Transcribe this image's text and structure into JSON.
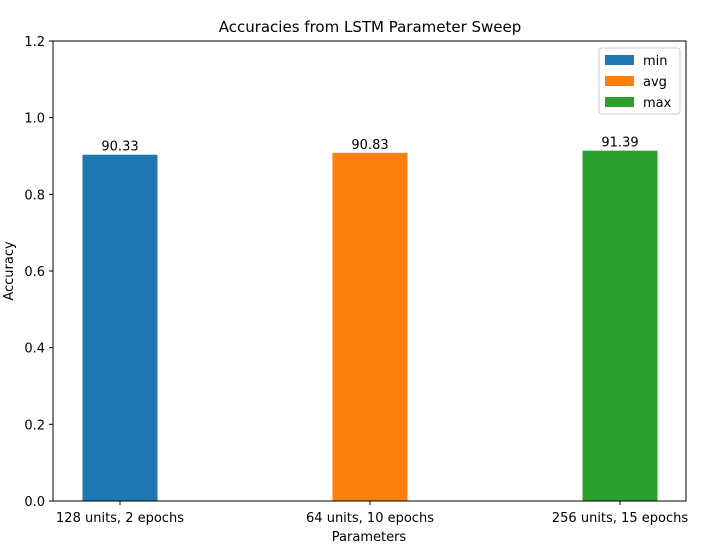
{
  "chart_data": {
    "type": "bar",
    "title": "Accuracies from LSTM Parameter Sweep",
    "xlabel": "Parameters",
    "ylabel": "Accuracy",
    "ylim": [
      0,
      1.2
    ],
    "yticks": [
      "0.0",
      "0.2",
      "0.4",
      "0.6",
      "0.8",
      "1.0",
      "1.2"
    ],
    "categories": [
      "128 units, 2 epochs",
      "64 units, 10 epochs",
      "256 units, 15 epochs"
    ],
    "series": [
      {
        "name": "min",
        "category": "128 units, 2 epochs",
        "value": 0.9033,
        "label": "90.33",
        "color": "#1f77b4"
      },
      {
        "name": "avg",
        "category": "64 units, 10 epochs",
        "value": 0.9083,
        "label": "90.83",
        "color": "#ff7f0e"
      },
      {
        "name": "max",
        "category": "256 units, 15 epochs",
        "value": 0.9139,
        "label": "91.39",
        "color": "#2ca02c"
      }
    ],
    "legend": {
      "position": "top-right",
      "entries": [
        "min",
        "avg",
        "max"
      ]
    },
    "grid": false
  }
}
